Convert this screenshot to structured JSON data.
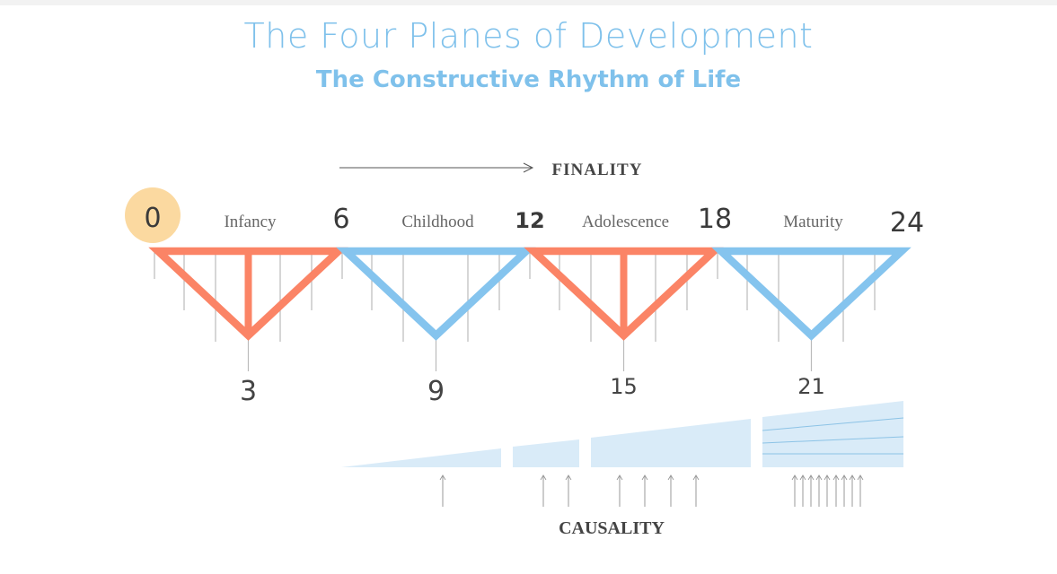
{
  "title": "The Four Planes of Development",
  "subtitle": "The Constructive Rhythm of Life",
  "finality_label": "FINALITY",
  "causality_label": "CAUSALITY",
  "colors": {
    "title": "#7fc1eb",
    "odd_plane": "#fb8466",
    "even_plane": "#85c4ee",
    "start_circle": "#fbd9a0",
    "causality_fill": "#d9ebf8"
  },
  "boundary_ages": [
    "0",
    "6",
    "12",
    "18",
    "24"
  ],
  "midpoint_ages": [
    "3",
    "9",
    "15",
    "21"
  ],
  "planes": [
    {
      "name": "Infancy",
      "color": "odd",
      "has_center_line": true
    },
    {
      "name": "Childhood",
      "color": "even",
      "has_center_line": false
    },
    {
      "name": "Adolescence",
      "color": "odd",
      "has_center_line": true
    },
    {
      "name": "Maturity",
      "color": "even",
      "has_center_line": false
    }
  ],
  "causality_arrow_counts": [
    1,
    2,
    4,
    9
  ]
}
